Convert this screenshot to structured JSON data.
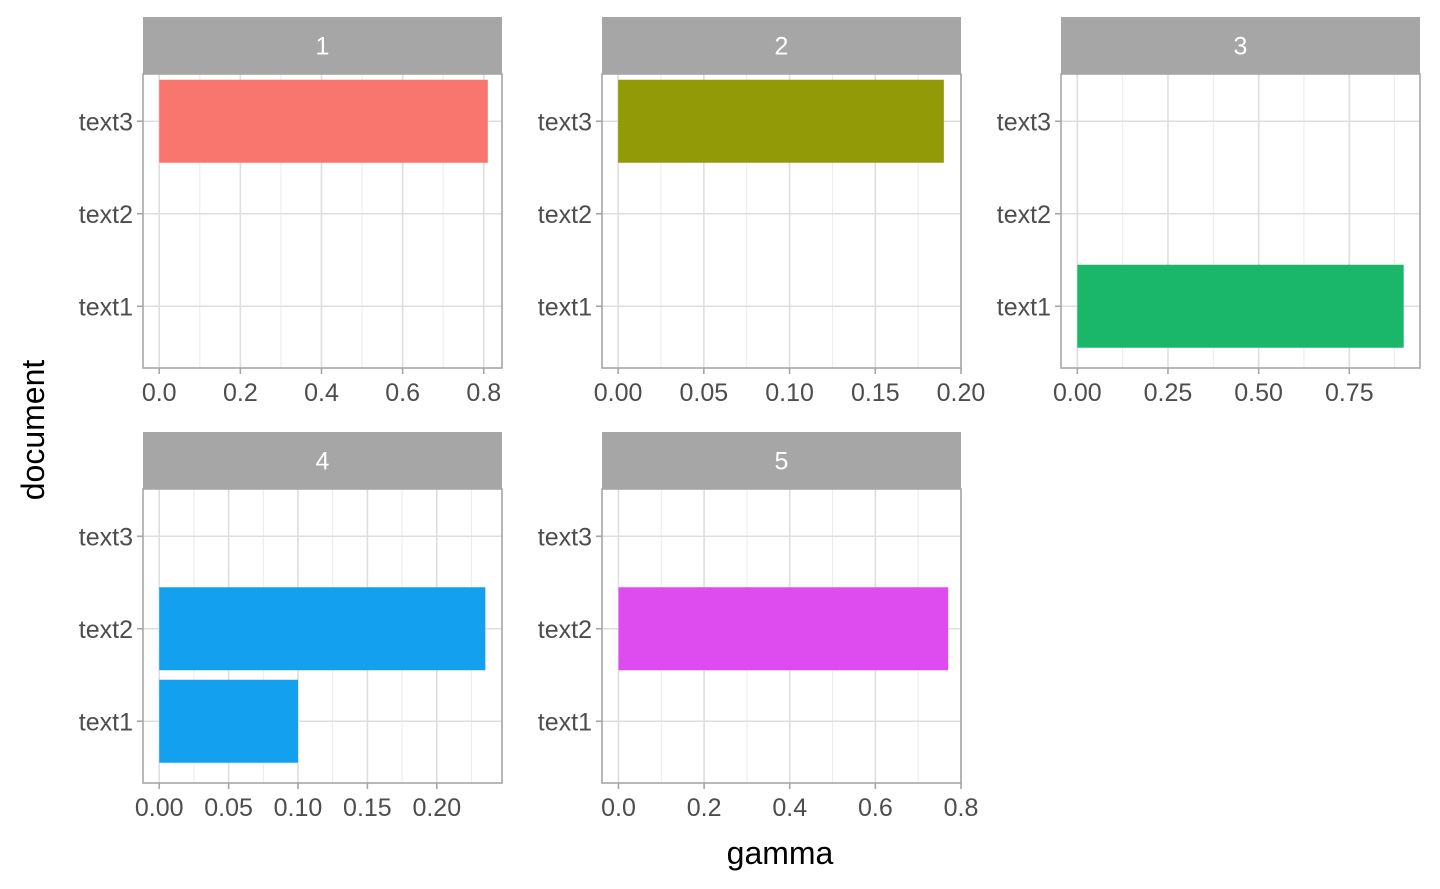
{
  "chart_data": {
    "type": "bar",
    "orientation": "horizontal",
    "facet_wrap": true,
    "xlabel": "gamma",
    "ylabel": "document",
    "categories": [
      "text1",
      "text2",
      "text3"
    ],
    "grid": true,
    "legend": "none",
    "panels": [
      {
        "title": "1",
        "color": "#F8766D",
        "values": [
          0,
          0,
          0.81
        ],
        "xlim": [
          -0.04,
          0.845
        ],
        "ticks": [
          0.0,
          0.2,
          0.4,
          0.6,
          0.8
        ],
        "tick_labels": [
          "0.0",
          "0.2",
          "0.4",
          "0.6",
          "0.8"
        ]
      },
      {
        "title": "2",
        "color": "#939A08",
        "values": [
          0,
          0,
          0.19
        ],
        "xlim": [
          -0.0094,
          0.2
        ],
        "ticks": [
          0.0,
          0.05,
          0.1,
          0.15,
          0.2
        ],
        "tick_labels": [
          "0.00",
          "0.05",
          "0.10",
          "0.15",
          "0.20"
        ]
      },
      {
        "title": "3",
        "color": "#1AB76B",
        "values": [
          0.9,
          0,
          0
        ],
        "xlim": [
          -0.045,
          0.945
        ],
        "ticks": [
          0.0,
          0.25,
          0.5,
          0.75
        ],
        "tick_labels": [
          "0.00",
          "0.25",
          "0.50",
          "0.75"
        ]
      },
      {
        "title": "4",
        "color": "#13A0EE",
        "values": [
          0.1,
          0.235,
          0
        ],
        "xlim": [
          -0.0117,
          0.247
        ],
        "ticks": [
          0.0,
          0.05,
          0.1,
          0.15,
          0.2
        ],
        "tick_labels": [
          "0.00",
          "0.05",
          "0.10",
          "0.15",
          "0.20"
        ]
      },
      {
        "title": "5",
        "color": "#DE4CF0",
        "values": [
          0,
          0.77,
          0
        ],
        "xlim": [
          -0.0385,
          0.8
        ],
        "ticks": [
          0.0,
          0.2,
          0.4,
          0.6,
          0.8
        ],
        "tick_labels": [
          "0.0",
          "0.2",
          "0.4",
          "0.6",
          "0.8"
        ]
      }
    ]
  }
}
